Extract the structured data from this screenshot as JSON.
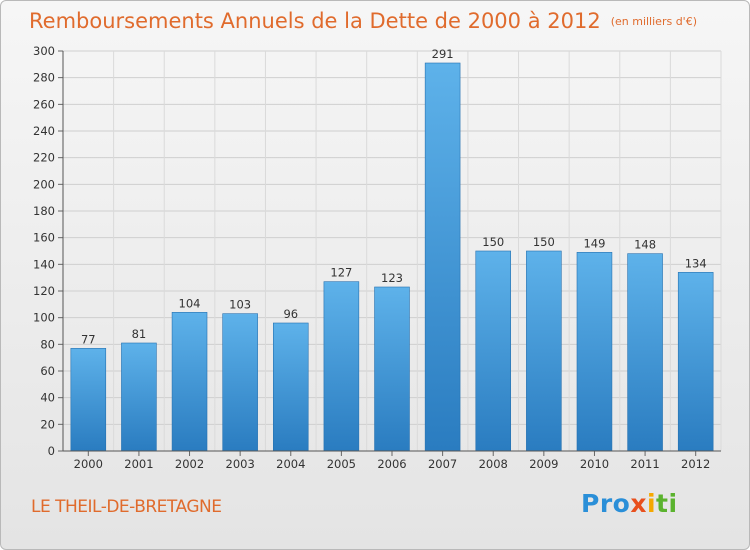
{
  "chart_data": {
    "type": "bar",
    "title": "Remboursements Annuels de la Dette de 2000 à 2012",
    "unit": "(en milliers d'€)",
    "categories": [
      "2000",
      "2001",
      "2002",
      "2003",
      "2004",
      "2005",
      "2006",
      "2007",
      "2008",
      "2009",
      "2010",
      "2011",
      "2012"
    ],
    "values": [
      77,
      81,
      104,
      103,
      96,
      127,
      123,
      291,
      150,
      150,
      149,
      148,
      134
    ],
    "ylim": [
      0,
      300
    ],
    "yticks": [
      0,
      20,
      40,
      60,
      80,
      100,
      120,
      140,
      160,
      180,
      200,
      220,
      240,
      260,
      280,
      300
    ],
    "grid": true,
    "bar_color": "#3a8fd0"
  },
  "footer": {
    "place": "LE THEIL-DE-BRETAGNE",
    "logo": {
      "p1": "Pro",
      "p2": "x",
      "p3": "i",
      "p4": "ti"
    }
  }
}
